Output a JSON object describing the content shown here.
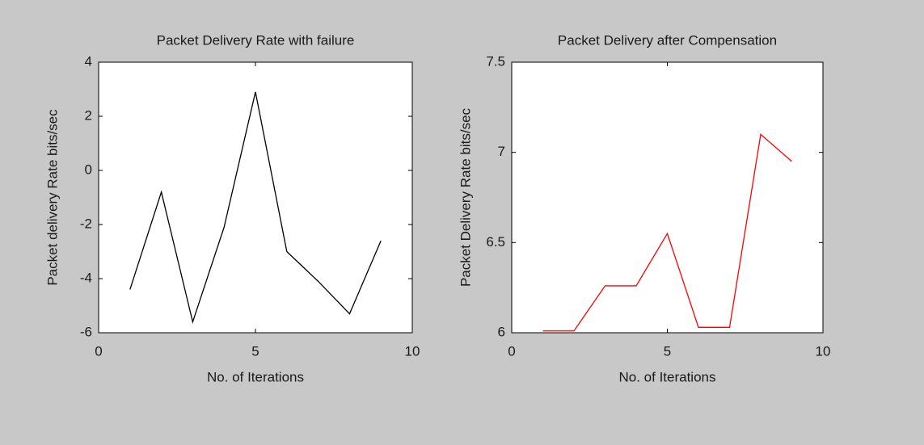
{
  "chart_data": [
    {
      "type": "line",
      "title": "Packet Delivery Rate with failure",
      "xlabel": "No. of Iterations",
      "ylabel": "Packet delivery Rate bits/sec",
      "x": [
        1,
        2,
        3,
        4,
        5,
        6,
        7,
        8,
        9
      ],
      "series": [
        {
          "color": "#000000",
          "values": [
            -4.4,
            -0.8,
            -5.6,
            -2.1,
            2.9,
            -3.0,
            -4.1,
            -5.3,
            -2.6
          ]
        }
      ],
      "xlim": [
        0,
        10
      ],
      "xticks": [
        0,
        5,
        10
      ],
      "ylim": [
        -6,
        4
      ],
      "yticks": [
        -6,
        -4,
        -2,
        0,
        2,
        4
      ]
    },
    {
      "type": "line",
      "title": "Packet Delivery after Compensation",
      "xlabel": "No. of Iterations",
      "ylabel": "Packet Delivery Rate bits/sec",
      "x": [
        1,
        2,
        3,
        4,
        5,
        6,
        7,
        8,
        9
      ],
      "series": [
        {
          "color": "#ff0000",
          "values": [
            6.01,
            6.01,
            6.26,
            6.26,
            6.55,
            6.03,
            6.03,
            7.1,
            6.95
          ]
        }
      ],
      "xlim": [
        0,
        10
      ],
      "xticks": [
        0,
        5,
        10
      ],
      "ylim": [
        6,
        7.5
      ],
      "yticks": [
        6,
        6.5,
        7,
        7.5
      ]
    }
  ]
}
